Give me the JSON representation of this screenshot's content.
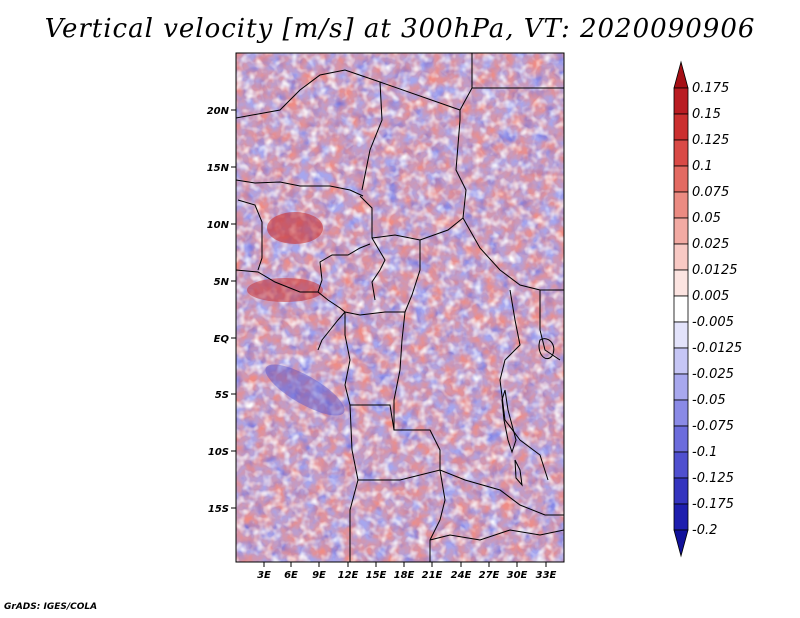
{
  "title": "Vertical velocity [m/s] at 300hPa, VT: 2020090906",
  "credit": "GrADS: IGES/COLA",
  "map": {
    "lat_labels": [
      "20N",
      "15N",
      "10N",
      "5N",
      "EQ",
      "5S",
      "10S",
      "15S"
    ],
    "lon_labels": [
      "3E",
      "6E",
      "9E",
      "12E",
      "15E",
      "18E",
      "21E",
      "24E",
      "27E",
      "30E",
      "33E"
    ]
  },
  "colorbar": {
    "labels": [
      "0.175",
      "0.15",
      "0.125",
      "0.1",
      "0.075",
      "0.05",
      "0.025",
      "0.0125",
      "0.005",
      "-0.005",
      "-0.0125",
      "-0.025",
      "-0.05",
      "-0.075",
      "-0.1",
      "-0.125",
      "-0.175",
      "-0.2"
    ],
    "colors": [
      "#a50f15",
      "#b91c22",
      "#cb2f2f",
      "#d94a46",
      "#e36a62",
      "#eb8b82",
      "#f2aaa3",
      "#f8c9c4",
      "#fce4e1",
      "#ffffff",
      "#e3e3fb",
      "#c6c6f5",
      "#a8a8ee",
      "#8a8ae6",
      "#6c6cdc",
      "#4f4fcf",
      "#3434bf",
      "#1e1eae",
      "#11119a"
    ]
  }
}
